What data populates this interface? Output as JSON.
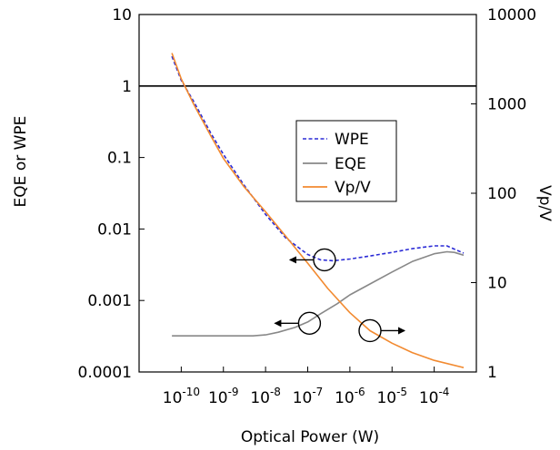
{
  "chart_data": {
    "type": "line",
    "xlabel": "Optical Power (W)",
    "ylabel_left": "EQE or WPE",
    "ylabel_right": "Vp/V",
    "x_scale": "log",
    "y_left_scale": "log",
    "y_right_scale": "log",
    "xlim": [
      1e-11,
      0.001
    ],
    "ylim_left": [
      0.0001,
      10
    ],
    "ylim_right": [
      1,
      10000
    ],
    "x_ticks": [
      {
        "value": 1e-10,
        "base": "10",
        "exp": "-10"
      },
      {
        "value": 1e-09,
        "base": "10",
        "exp": "-9"
      },
      {
        "value": 1e-08,
        "base": "10",
        "exp": "-8"
      },
      {
        "value": 1e-07,
        "base": "10",
        "exp": "-7"
      },
      {
        "value": 1e-06,
        "base": "10",
        "exp": "-6"
      },
      {
        "value": 1e-05,
        "base": "10",
        "exp": "-5"
      },
      {
        "value": 0.0001,
        "base": "10",
        "exp": "-4"
      }
    ],
    "y_left_ticks": [
      {
        "value": 10,
        "label": "10"
      },
      {
        "value": 1,
        "label": "1"
      },
      {
        "value": 0.1,
        "label": "0.1"
      },
      {
        "value": 0.01,
        "label": "0.01"
      },
      {
        "value": 0.001,
        "label": "0.001"
      },
      {
        "value": 0.0001,
        "label": "0.0001"
      }
    ],
    "y_right_ticks": [
      {
        "value": 10000,
        "label": "10000"
      },
      {
        "value": 1000,
        "label": "1000"
      },
      {
        "value": 100,
        "label": "100"
      },
      {
        "value": 10,
        "label": "10"
      },
      {
        "value": 1,
        "label": "1"
      }
    ],
    "reference_line": {
      "axis": "left",
      "y": 1,
      "color": "#000000"
    },
    "legend": {
      "position": "center-right"
    },
    "series": [
      {
        "name": "WPE",
        "axis": "left",
        "color": "#2b2bd6",
        "style": "dashed",
        "x": [
          6e-11,
          1e-10,
          2e-10,
          5e-10,
          1e-09,
          3e-09,
          1e-08,
          3e-08,
          1e-07,
          2e-07,
          4e-07,
          1e-06,
          3e-06,
          1e-05,
          3e-05,
          0.0001,
          0.0002,
          0.0005
        ],
        "y": [
          2.6,
          1.2,
          0.6,
          0.22,
          0.11,
          0.042,
          0.016,
          0.0075,
          0.0044,
          0.0037,
          0.0036,
          0.0038,
          0.0042,
          0.0047,
          0.0053,
          0.0058,
          0.0058,
          0.0046
        ]
      },
      {
        "name": "EQE",
        "axis": "left",
        "color": "#888888",
        "style": "solid",
        "x": [
          6e-11,
          1e-10,
          1e-09,
          5e-09,
          1e-08,
          2e-08,
          5e-08,
          1e-07,
          2e-07,
          5e-07,
          1e-06,
          3e-06,
          1e-05,
          3e-05,
          0.0001,
          0.0002,
          0.0003,
          0.0005
        ],
        "y": [
          0.00032,
          0.00032,
          0.00032,
          0.00032,
          0.00033,
          0.00036,
          0.00042,
          0.0005,
          0.00065,
          0.0009,
          0.0012,
          0.0017,
          0.0025,
          0.0035,
          0.0045,
          0.0048,
          0.0047,
          0.0043
        ]
      },
      {
        "name": "Vp/V",
        "axis": "right",
        "color": "#f28a30",
        "style": "solid",
        "x": [
          6e-11,
          1e-10,
          2e-10,
          5e-10,
          1e-09,
          3e-09,
          1e-08,
          3e-08,
          1e-07,
          3e-07,
          1e-06,
          3e-06,
          1e-05,
          3e-05,
          0.0001,
          0.0005
        ],
        "y": [
          3700,
          1900,
          980,
          440,
          245,
          120,
          62,
          33,
          16.5,
          8.6,
          4.6,
          2.9,
          2.1,
          1.65,
          1.35,
          1.12
        ]
      }
    ],
    "annotations": [
      {
        "x": 2.5e-07,
        "y": 0.0037,
        "axis": "left",
        "arrow": "left"
      },
      {
        "x": 1.1e-07,
        "y": 0.00048,
        "axis": "left",
        "arrow": "left"
      },
      {
        "x": 3e-06,
        "y": 2.9,
        "axis": "right",
        "arrow": "right"
      }
    ]
  }
}
